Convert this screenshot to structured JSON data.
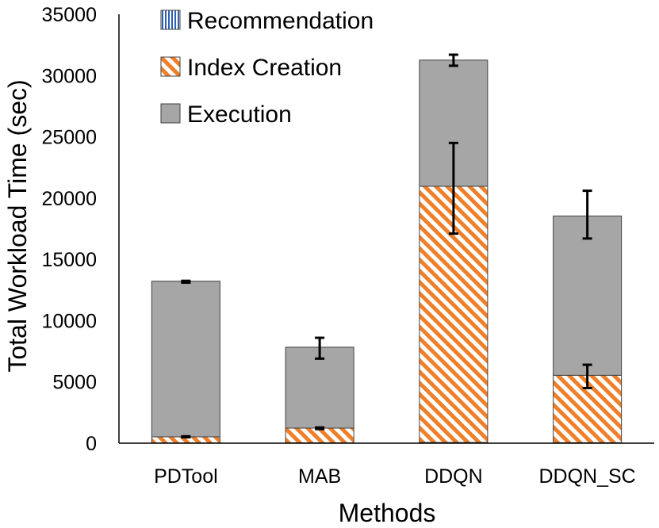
{
  "chart_data": {
    "type": "bar",
    "stacked": true,
    "title": "",
    "xlabel": "Methods",
    "ylabel": "Total Workload Time (sec)",
    "ylim": [
      0,
      35000
    ],
    "yticks": [
      0,
      5000,
      10000,
      15000,
      20000,
      25000,
      30000,
      35000
    ],
    "categories": [
      "PDTool",
      "MAB",
      "DDQN",
      "DDQN_SC"
    ],
    "series": [
      {
        "name": "Recommendation",
        "values": [
          20,
          30,
          60,
          40
        ],
        "color": "#2f5fb0",
        "pattern": "vertical-lines"
      },
      {
        "name": "Index Creation",
        "values": [
          500,
          1200,
          20900,
          5500
        ],
        "color": "#f07f2a",
        "pattern": "diagonal-stripes",
        "error": [
          [
            480,
            560
          ],
          [
            1150,
            1280
          ],
          [
            17100,
            24500
          ],
          [
            4500,
            6400
          ]
        ]
      },
      {
        "name": "Execution",
        "values": [
          12700,
          6600,
          10300,
          13000
        ],
        "color": "#a6a6a6",
        "pattern": "solid",
        "error": [
          [
            13100,
            13250
          ],
          [
            6900,
            8600
          ],
          [
            30800,
            31700
          ],
          [
            16700,
            20600
          ]
        ]
      }
    ],
    "legend": {
      "position": "top-left-inside"
    }
  }
}
